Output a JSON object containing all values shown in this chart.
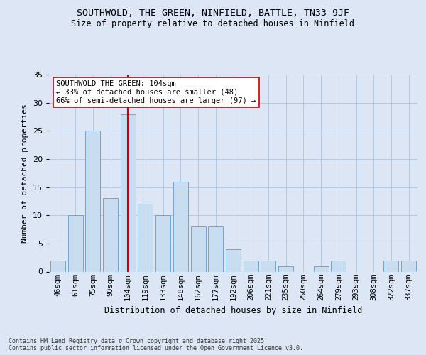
{
  "title1": "SOUTHWOLD, THE GREEN, NINFIELD, BATTLE, TN33 9JF",
  "title2": "Size of property relative to detached houses in Ninfield",
  "xlabel": "Distribution of detached houses by size in Ninfield",
  "ylabel": "Number of detached properties",
  "categories": [
    "46sqm",
    "61sqm",
    "75sqm",
    "90sqm",
    "104sqm",
    "119sqm",
    "133sqm",
    "148sqm",
    "162sqm",
    "177sqm",
    "192sqm",
    "206sqm",
    "221sqm",
    "235sqm",
    "250sqm",
    "264sqm",
    "279sqm",
    "293sqm",
    "308sqm",
    "322sqm",
    "337sqm"
  ],
  "values": [
    2,
    10,
    25,
    13,
    28,
    12,
    10,
    16,
    8,
    8,
    4,
    2,
    2,
    1,
    0,
    1,
    2,
    0,
    0,
    2,
    2
  ],
  "bar_color": "#c9ddf0",
  "bar_edge_color": "#6699cc",
  "reference_line_index": 4,
  "reference_line_color": "#cc0000",
  "annotation_text": "SOUTHWOLD THE GREEN: 104sqm\n← 33% of detached houses are smaller (48)\n66% of semi-detached houses are larger (97) →",
  "annotation_box_facecolor": "#ffffff",
  "annotation_box_edgecolor": "#cc0000",
  "background_color": "#dce6f5",
  "plot_bg_color": "#dce6f5",
  "footer_text": "Contains HM Land Registry data © Crown copyright and database right 2025.\nContains public sector information licensed under the Open Government Licence v3.0.",
  "ylim": [
    0,
    35
  ],
  "yticks": [
    0,
    5,
    10,
    15,
    20,
    25,
    30,
    35
  ],
  "title1_fontsize": 9.5,
  "title2_fontsize": 8.5,
  "xlabel_fontsize": 8.5,
  "ylabel_fontsize": 8,
  "tick_fontsize": 7.5,
  "annotation_fontsize": 7.5,
  "footer_fontsize": 6
}
